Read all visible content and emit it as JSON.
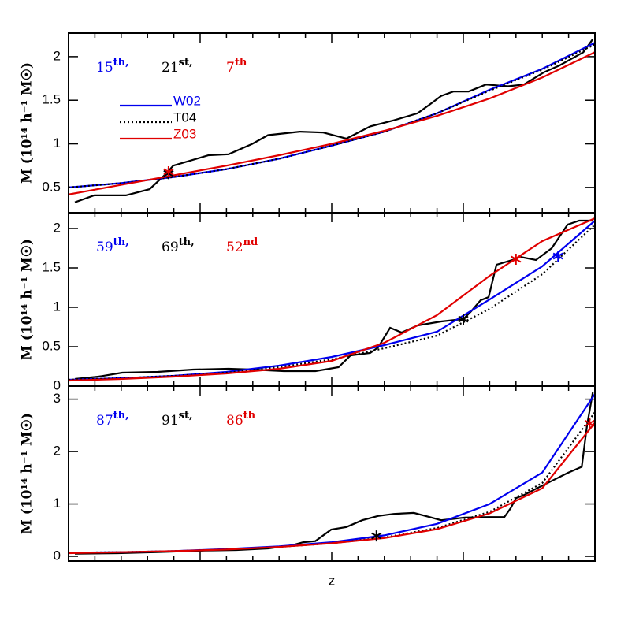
{
  "chart_data": [
    {
      "type": "line",
      "ylabel": "M (10¹⁴ h⁻¹ M☉)",
      "xlim": [
        0,
        1
      ],
      "ylim": [
        0.21,
        2.27
      ],
      "yticks": [
        0.5,
        1,
        1.5,
        2
      ],
      "ranks": [
        {
          "text": "15",
          "suffix": "th,",
          "color": "#0000ee"
        },
        {
          "text": "21",
          "suffix": "st,",
          "color": "#000000"
        },
        {
          "text": "7",
          "suffix": "th",
          "color": "#e00000"
        }
      ],
      "series": [
        {
          "x": [
            0.012,
            0.049,
            0.109,
            0.154,
            0.184,
            0.199,
            0.266,
            0.304,
            0.349,
            0.379,
            0.439,
            0.484,
            0.528,
            0.573,
            0.618,
            0.663,
            0.686,
            0.708,
            0.731,
            0.76,
            0.793,
            0.835,
            0.865,
            0.903,
            0.933,
            0.978,
            0.996
          ],
          "values": [
            0.33,
            0.41,
            0.41,
            0.48,
            0.65,
            0.75,
            0.87,
            0.88,
            1.0,
            1.1,
            1.14,
            1.13,
            1.06,
            1.2,
            1.27,
            1.35,
            1.45,
            1.55,
            1.6,
            1.6,
            1.68,
            1.66,
            1.68,
            1.82,
            1.9,
            2.05,
            2.2
          ],
          "color": "#000000",
          "style": "solid"
        },
        {
          "name": "W02",
          "color": "#0000ee",
          "style": "solid",
          "x": [
            0,
            0.1,
            0.2,
            0.3,
            0.4,
            0.5,
            0.6,
            0.7,
            0.8,
            0.9,
            1
          ],
          "values": [
            0.5,
            0.55,
            0.62,
            0.71,
            0.83,
            0.98,
            1.14,
            1.35,
            1.62,
            1.86,
            2.16
          ],
          "star": {
            "x": 0.19,
            "y": 0.66
          }
        },
        {
          "name": "T04",
          "color": "#000000",
          "style": "dotted",
          "x": [
            0,
            0.1,
            0.2,
            0.3,
            0.4,
            0.5,
            0.6,
            0.7,
            0.8,
            0.9,
            1
          ],
          "values": [
            0.5,
            0.55,
            0.62,
            0.71,
            0.83,
            0.98,
            1.14,
            1.35,
            1.61,
            1.85,
            2.14
          ],
          "star": {
            "x": 0.19,
            "y": 0.66
          }
        },
        {
          "name": "Z03",
          "color": "#e00000",
          "style": "solid",
          "x": [
            0,
            0.1,
            0.2,
            0.3,
            0.4,
            0.5,
            0.6,
            0.7,
            0.8,
            0.9,
            1
          ],
          "values": [
            0.42,
            0.53,
            0.64,
            0.75,
            0.87,
            1.0,
            1.15,
            1.32,
            1.52,
            1.76,
            2.05
          ],
          "star": {
            "x": 0.19,
            "y": 0.68
          }
        }
      ]
    },
    {
      "type": "line",
      "ylabel": "M (10¹⁴ h⁻¹ M☉)",
      "xlim": [
        0,
        1
      ],
      "ylim": [
        0,
        2.2
      ],
      "yticks": [
        0,
        0.5,
        1,
        1.5,
        2
      ],
      "ranks": [
        {
          "text": "59",
          "suffix": "th,",
          "color": "#0000ee"
        },
        {
          "text": "69",
          "suffix": "th,",
          "color": "#000000"
        },
        {
          "text": "52",
          "suffix": "nd",
          "color": "#e00000"
        }
      ],
      "series": [
        {
          "x": [
            0.012,
            0.057,
            0.102,
            0.169,
            0.237,
            0.304,
            0.349,
            0.409,
            0.469,
            0.513,
            0.536,
            0.573,
            0.588,
            0.611,
            0.633,
            0.663,
            0.708,
            0.75,
            0.765,
            0.783,
            0.798,
            0.813,
            0.843,
            0.858,
            0.888,
            0.918,
            0.948,
            0.97,
            0.996
          ],
          "values": [
            0.09,
            0.12,
            0.17,
            0.18,
            0.21,
            0.22,
            0.21,
            0.19,
            0.19,
            0.24,
            0.39,
            0.42,
            0.49,
            0.74,
            0.68,
            0.77,
            0.82,
            0.85,
            0.95,
            1.09,
            1.13,
            1.54,
            1.6,
            1.64,
            1.6,
            1.75,
            2.05,
            2.1,
            2.1
          ],
          "color": "#000000",
          "style": "solid"
        },
        {
          "color": "#0000ee",
          "style": "solid",
          "x": [
            0,
            0.1,
            0.2,
            0.3,
            0.4,
            0.5,
            0.6,
            0.7,
            0.8,
            0.9,
            1
          ],
          "values": [
            0.08,
            0.1,
            0.13,
            0.18,
            0.26,
            0.37,
            0.52,
            0.69,
            1.1,
            1.52,
            2.1
          ],
          "star": {
            "x": 0.93,
            "y": 1.65
          }
        },
        {
          "color": "#000000",
          "style": "dotted",
          "x": [
            0,
            0.1,
            0.2,
            0.3,
            0.4,
            0.5,
            0.6,
            0.7,
            0.8,
            0.9,
            1
          ],
          "values": [
            0.08,
            0.1,
            0.13,
            0.17,
            0.24,
            0.34,
            0.48,
            0.64,
            0.98,
            1.42,
            2.05
          ],
          "star": {
            "x": 0.75,
            "y": 0.85
          }
        },
        {
          "color": "#e00000",
          "style": "solid",
          "x": [
            0,
            0.1,
            0.2,
            0.3,
            0.4,
            0.5,
            0.6,
            0.7,
            0.8,
            0.9,
            1
          ],
          "values": [
            0.07,
            0.09,
            0.12,
            0.16,
            0.22,
            0.32,
            0.55,
            0.9,
            1.4,
            1.84,
            2.13
          ],
          "star": {
            "x": 0.85,
            "y": 1.61
          }
        }
      ]
    },
    {
      "type": "line",
      "ylabel": "M (10¹⁴ h⁻¹ M☉)",
      "xlabel": "z",
      "xlim": [
        0,
        1
      ],
      "ylim": [
        -0.09,
        3.25
      ],
      "yticks": [
        0,
        1,
        2,
        3
      ],
      "ranks": [
        {
          "text": "87",
          "suffix": "th,",
          "color": "#0000ee"
        },
        {
          "text": "91",
          "suffix": "st,",
          "color": "#000000"
        },
        {
          "text": "86",
          "suffix": "th",
          "color": "#e00000"
        }
      ],
      "series": [
        {
          "x": [
            0.012,
            0.094,
            0.169,
            0.259,
            0.319,
            0.379,
            0.424,
            0.446,
            0.469,
            0.499,
            0.528,
            0.558,
            0.588,
            0.618,
            0.656,
            0.686,
            0.708,
            0.753,
            0.798,
            0.828,
            0.84,
            0.85,
            0.865,
            0.888,
            0.918,
            0.948,
            0.975,
            0.985,
            0.996
          ],
          "values": [
            0.05,
            0.06,
            0.08,
            0.11,
            0.12,
            0.15,
            0.21,
            0.27,
            0.29,
            0.51,
            0.56,
            0.69,
            0.77,
            0.81,
            0.83,
            0.75,
            0.69,
            0.74,
            0.75,
            0.75,
            0.92,
            1.11,
            1.17,
            1.29,
            1.44,
            1.59,
            1.71,
            2.5,
            3.13
          ],
          "color": "#000000",
          "style": "solid"
        },
        {
          "color": "#0000ee",
          "style": "solid",
          "x": [
            0,
            0.1,
            0.2,
            0.3,
            0.4,
            0.5,
            0.6,
            0.7,
            0.8,
            0.9,
            1
          ],
          "values": [
            0.07,
            0.08,
            0.1,
            0.14,
            0.19,
            0.27,
            0.4,
            0.62,
            1.0,
            1.6,
            3.1
          ]
        },
        {
          "color": "#000000",
          "style": "dotted",
          "x": [
            0,
            0.1,
            0.2,
            0.3,
            0.4,
            0.5,
            0.6,
            0.7,
            0.8,
            0.9,
            1
          ],
          "values": [
            0.07,
            0.08,
            0.1,
            0.13,
            0.18,
            0.25,
            0.36,
            0.54,
            0.85,
            1.4,
            2.75
          ],
          "star": {
            "x": 0.585,
            "y": 0.39
          }
        },
        {
          "color": "#e00000",
          "style": "solid",
          "x": [
            0,
            0.1,
            0.2,
            0.3,
            0.4,
            0.5,
            0.6,
            0.7,
            0.8,
            0.9,
            1
          ],
          "values": [
            0.06,
            0.08,
            0.1,
            0.13,
            0.18,
            0.25,
            0.35,
            0.52,
            0.82,
            1.3,
            2.55
          ],
          "star": {
            "x": 0.99,
            "y": 2.54
          }
        }
      ]
    }
  ]
}
